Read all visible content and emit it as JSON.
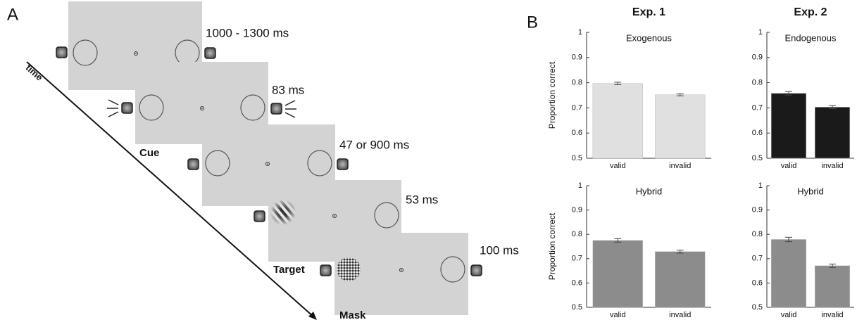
{
  "panel_a": {
    "label": "A",
    "time": "time",
    "frames": [
      {
        "duration": "1000 - 1300 ms"
      },
      {
        "duration": "83 ms",
        "label": "Cue"
      },
      {
        "duration": "47 or 900 ms"
      },
      {
        "duration": "53 ms",
        "label": "Target"
      },
      {
        "duration": "100 ms",
        "label": "Mask"
      }
    ]
  },
  "panel_b": {
    "label": "B"
  },
  "chart_data": [
    {
      "type": "bar",
      "column_title": "Exp. 1",
      "title": "Exogenous",
      "ylabel": "Proportion correct",
      "categories": [
        "valid",
        "invalid"
      ],
      "values": [
        0.797,
        0.752
      ],
      "errors": [
        0.005,
        0.004
      ],
      "color": "#e0e0e0",
      "ylim": [
        0.5,
        1
      ],
      "yticks": [
        0.5,
        0.6,
        0.7,
        0.8,
        0.9,
        1
      ]
    },
    {
      "type": "bar",
      "column_title": "Exp. 2",
      "title": "Endogenous",
      "categories": [
        "valid",
        "invalid"
      ],
      "values": [
        0.758,
        0.703
      ],
      "errors": [
        0.007,
        0.006
      ],
      "color": "#1a1a1a",
      "ylim": [
        0.5,
        1
      ],
      "yticks": [
        0.5,
        0.6,
        0.7,
        0.8,
        0.9,
        1
      ]
    },
    {
      "type": "bar",
      "title": "Hybrid",
      "ylabel": "Proportion correct",
      "categories": [
        "valid",
        "invalid"
      ],
      "values": [
        0.775,
        0.729
      ],
      "errors": [
        0.007,
        0.006
      ],
      "color": "#8c8c8c",
      "ylim": [
        0.5,
        1
      ],
      "yticks": [
        0.5,
        0.6,
        0.7,
        0.8,
        0.9,
        1
      ]
    },
    {
      "type": "bar",
      "title": "Hybrid",
      "categories": [
        "valid",
        "invalid"
      ],
      "values": [
        0.779,
        0.671
      ],
      "errors": [
        0.009,
        0.007
      ],
      "color": "#8c8c8c",
      "ylim": [
        0.5,
        1
      ],
      "yticks": [
        0.5,
        0.6,
        0.7,
        0.8,
        0.9,
        1
      ]
    }
  ]
}
